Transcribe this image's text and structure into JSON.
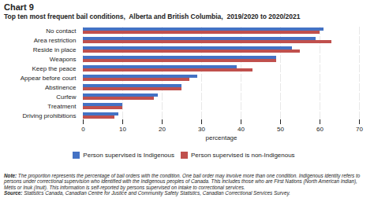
{
  "chart_data": {
    "type": "bar",
    "orientation": "horizontal",
    "title": "Chart 9",
    "subtitle": "Top ten most frequent bail conditions,  Alberta and British Columbia,  2019/2020 to 2020/2021",
    "categories": [
      "No contact",
      "Area restriction",
      "Reside in place",
      "Weapons",
      "Keep the peace",
      "Appear before court",
      "Abstinence",
      "Curfew",
      "Treatment",
      "Driving prohibitions"
    ],
    "series": [
      {
        "name": "Person supervised is Indigenous",
        "color": "#4472C4",
        "values": [
          61,
          59,
          53,
          49,
          39,
          29,
          25,
          19,
          10,
          9
        ]
      },
      {
        "name": "Person supervised is non-Indigenous",
        "color": "#C0504D",
        "values": [
          60,
          63,
          55,
          49,
          43,
          27,
          25,
          18,
          10,
          8
        ]
      }
    ],
    "xlabel": "percentage",
    "xlim": [
      0,
      70
    ],
    "xticks": [
      0,
      10,
      20,
      30,
      40,
      50,
      60,
      70
    ],
    "grid": true,
    "legend": "bottom",
    "annotations": [
      {
        "label": "Note:",
        "text": " The proportion represents the percentage of bail orders with the condition. One bail order may involve more than one condition. Indigenous identity refers to persons under correctional supervision who identified with the Indigenous peoples of Canada. This includes those who are First Nations (North American Indian), Métis or Inuk (Inuit). This information is self-reported by persons supervised on intake to correctional services."
      },
      {
        "label": "Source:",
        "text": " Statistics Canada, Canadian Centre for Justice and Community Safety Statistics, Canadian Correctional Services Survey."
      }
    ]
  }
}
